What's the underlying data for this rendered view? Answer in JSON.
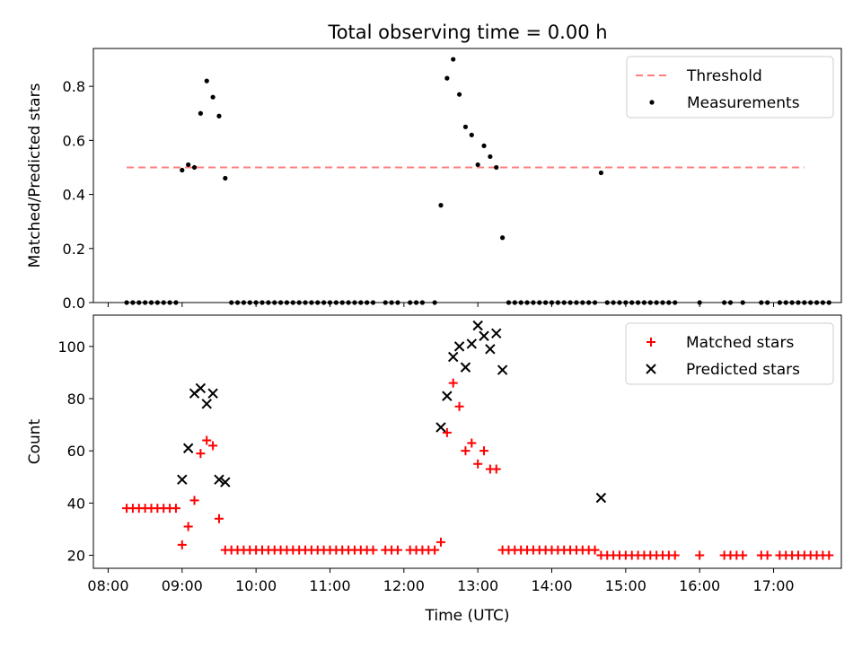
{
  "title": "Total observing time = 0.00 h",
  "colors": {
    "threshold": "#ff7f7f",
    "measurement": "#000000",
    "matched": "#ff0000",
    "predicted": "#000000"
  },
  "chart_data": [
    {
      "type": "scatter",
      "panel": "top",
      "ylabel": "Matched/Predicted stars",
      "xlim": [
        "07:48",
        "17:55"
      ],
      "ylim": [
        0,
        0.94
      ],
      "yticks": [
        "0.0",
        "0.2",
        "0.4",
        "0.6",
        "0.8"
      ],
      "legend": {
        "placement": "top-right",
        "entries": [
          "Threshold",
          "Measurements"
        ]
      },
      "threshold": {
        "name": "Threshold",
        "value": 0.5,
        "x_range": [
          "08:15",
          "17:25"
        ],
        "style": "dashed"
      },
      "series": [
        {
          "name": "Measurements",
          "points": [
            [
              "08:15",
              0
            ],
            [
              "08:20",
              0
            ],
            [
              "08:25",
              0
            ],
            [
              "08:30",
              0
            ],
            [
              "08:35",
              0
            ],
            [
              "08:40",
              0
            ],
            [
              "08:45",
              0
            ],
            [
              "08:50",
              0
            ],
            [
              "08:55",
              0
            ],
            [
              "09:00",
              0.49
            ],
            [
              "09:05",
              0.51
            ],
            [
              "09:10",
              0.5
            ],
            [
              "09:15",
              0.7
            ],
            [
              "09:20",
              0.82
            ],
            [
              "09:25",
              0.76
            ],
            [
              "09:30",
              0.69
            ],
            [
              "09:35",
              0.46
            ],
            [
              "09:40",
              0
            ],
            [
              "09:45",
              0
            ],
            [
              "09:50",
              0
            ],
            [
              "09:55",
              0
            ],
            [
              "10:00",
              0
            ],
            [
              "10:05",
              0
            ],
            [
              "10:10",
              0
            ],
            [
              "10:15",
              0
            ],
            [
              "10:20",
              0
            ],
            [
              "10:25",
              0
            ],
            [
              "10:30",
              0
            ],
            [
              "10:35",
              0
            ],
            [
              "10:40",
              0
            ],
            [
              "10:45",
              0
            ],
            [
              "10:50",
              0
            ],
            [
              "10:55",
              0
            ],
            [
              "11:00",
              0
            ],
            [
              "11:05",
              0
            ],
            [
              "11:10",
              0
            ],
            [
              "11:15",
              0
            ],
            [
              "11:20",
              0
            ],
            [
              "11:25",
              0
            ],
            [
              "11:30",
              0
            ],
            [
              "11:35",
              0
            ],
            [
              "11:45",
              0
            ],
            [
              "11:50",
              0
            ],
            [
              "11:55",
              0
            ],
            [
              "12:05",
              0
            ],
            [
              "12:10",
              0
            ],
            [
              "12:15",
              0
            ],
            [
              "12:25",
              0
            ],
            [
              "12:30",
              0.36
            ],
            [
              "12:35",
              0.83
            ],
            [
              "12:40",
              0.9
            ],
            [
              "12:45",
              0.77
            ],
            [
              "12:50",
              0.65
            ],
            [
              "12:55",
              0.62
            ],
            [
              "13:00",
              0.51
            ],
            [
              "13:05",
              0.58
            ],
            [
              "13:10",
              0.54
            ],
            [
              "13:15",
              0.5
            ],
            [
              "13:20",
              0.24
            ],
            [
              "13:25",
              0
            ],
            [
              "13:30",
              0
            ],
            [
              "13:35",
              0
            ],
            [
              "13:40",
              0
            ],
            [
              "13:45",
              0
            ],
            [
              "13:50",
              0
            ],
            [
              "13:55",
              0
            ],
            [
              "14:00",
              0
            ],
            [
              "14:05",
              0
            ],
            [
              "14:10",
              0
            ],
            [
              "14:15",
              0
            ],
            [
              "14:20",
              0
            ],
            [
              "14:25",
              0
            ],
            [
              "14:30",
              0
            ],
            [
              "14:35",
              0
            ],
            [
              "14:40",
              0.48
            ],
            [
              "14:45",
              0
            ],
            [
              "14:50",
              0
            ],
            [
              "14:55",
              0
            ],
            [
              "15:00",
              0
            ],
            [
              "15:05",
              0
            ],
            [
              "15:10",
              0
            ],
            [
              "15:15",
              0
            ],
            [
              "15:20",
              0
            ],
            [
              "15:25",
              0
            ],
            [
              "15:30",
              0
            ],
            [
              "15:35",
              0
            ],
            [
              "15:40",
              0
            ],
            [
              "16:00",
              0
            ],
            [
              "16:20",
              0
            ],
            [
              "16:25",
              0
            ],
            [
              "16:35",
              0
            ],
            [
              "16:50",
              0
            ],
            [
              "16:55",
              0
            ],
            [
              "17:05",
              0
            ],
            [
              "17:10",
              0
            ],
            [
              "17:15",
              0
            ],
            [
              "17:20",
              0
            ],
            [
              "17:25",
              0
            ],
            [
              "17:30",
              0
            ],
            [
              "17:35",
              0
            ],
            [
              "17:40",
              0
            ],
            [
              "17:45",
              0
            ]
          ]
        }
      ]
    },
    {
      "type": "scatter",
      "panel": "bottom",
      "xlabel": "Time (UTC)",
      "ylabel": "Count",
      "xlim": [
        "07:48",
        "17:55"
      ],
      "ylim": [
        15,
        112
      ],
      "xticks": [
        "08:00",
        "09:00",
        "10:00",
        "11:00",
        "12:00",
        "13:00",
        "14:00",
        "15:00",
        "16:00",
        "17:00"
      ],
      "yticks": [
        "20",
        "40",
        "60",
        "80",
        "100"
      ],
      "legend": {
        "placement": "top-right",
        "entries": [
          "Matched stars",
          "Predicted stars"
        ]
      },
      "series": [
        {
          "name": "Matched stars",
          "marker": "plus",
          "points": [
            [
              "08:15",
              38
            ],
            [
              "08:20",
              38
            ],
            [
              "08:25",
              38
            ],
            [
              "08:30",
              38
            ],
            [
              "08:35",
              38
            ],
            [
              "08:40",
              38
            ],
            [
              "08:45",
              38
            ],
            [
              "08:50",
              38
            ],
            [
              "08:55",
              38
            ],
            [
              "09:00",
              24
            ],
            [
              "09:05",
              31
            ],
            [
              "09:10",
              41
            ],
            [
              "09:15",
              59
            ],
            [
              "09:20",
              64
            ],
            [
              "09:25",
              62
            ],
            [
              "09:30",
              34
            ],
            [
              "09:35",
              22
            ],
            [
              "09:40",
              22
            ],
            [
              "09:45",
              22
            ],
            [
              "09:50",
              22
            ],
            [
              "09:55",
              22
            ],
            [
              "10:00",
              22
            ],
            [
              "10:05",
              22
            ],
            [
              "10:10",
              22
            ],
            [
              "10:15",
              22
            ],
            [
              "10:20",
              22
            ],
            [
              "10:25",
              22
            ],
            [
              "10:30",
              22
            ],
            [
              "10:35",
              22
            ],
            [
              "10:40",
              22
            ],
            [
              "10:45",
              22
            ],
            [
              "10:50",
              22
            ],
            [
              "10:55",
              22
            ],
            [
              "11:00",
              22
            ],
            [
              "11:05",
              22
            ],
            [
              "11:10",
              22
            ],
            [
              "11:15",
              22
            ],
            [
              "11:20",
              22
            ],
            [
              "11:25",
              22
            ],
            [
              "11:30",
              22
            ],
            [
              "11:35",
              22
            ],
            [
              "11:45",
              22
            ],
            [
              "11:50",
              22
            ],
            [
              "11:55",
              22
            ],
            [
              "12:05",
              22
            ],
            [
              "12:10",
              22
            ],
            [
              "12:15",
              22
            ],
            [
              "12:20",
              22
            ],
            [
              "12:25",
              22
            ],
            [
              "12:30",
              25
            ],
            [
              "12:35",
              67
            ],
            [
              "12:40",
              86
            ],
            [
              "12:45",
              77
            ],
            [
              "12:50",
              60
            ],
            [
              "12:55",
              63
            ],
            [
              "13:00",
              55
            ],
            [
              "13:05",
              60
            ],
            [
              "13:10",
              53
            ],
            [
              "13:15",
              53
            ],
            [
              "13:20",
              22
            ],
            [
              "13:25",
              22
            ],
            [
              "13:30",
              22
            ],
            [
              "13:35",
              22
            ],
            [
              "13:40",
              22
            ],
            [
              "13:45",
              22
            ],
            [
              "13:50",
              22
            ],
            [
              "13:55",
              22
            ],
            [
              "14:00",
              22
            ],
            [
              "14:05",
              22
            ],
            [
              "14:10",
              22
            ],
            [
              "14:15",
              22
            ],
            [
              "14:20",
              22
            ],
            [
              "14:25",
              22
            ],
            [
              "14:30",
              22
            ],
            [
              "14:35",
              22
            ],
            [
              "14:40",
              20
            ],
            [
              "14:45",
              20
            ],
            [
              "14:50",
              20
            ],
            [
              "14:55",
              20
            ],
            [
              "15:00",
              20
            ],
            [
              "15:05",
              20
            ],
            [
              "15:10",
              20
            ],
            [
              "15:15",
              20
            ],
            [
              "15:20",
              20
            ],
            [
              "15:25",
              20
            ],
            [
              "15:30",
              20
            ],
            [
              "15:35",
              20
            ],
            [
              "15:40",
              20
            ],
            [
              "16:00",
              20
            ],
            [
              "16:20",
              20
            ],
            [
              "16:25",
              20
            ],
            [
              "16:30",
              20
            ],
            [
              "16:35",
              20
            ],
            [
              "16:50",
              20
            ],
            [
              "16:55",
              20
            ],
            [
              "17:05",
              20
            ],
            [
              "17:10",
              20
            ],
            [
              "17:15",
              20
            ],
            [
              "17:20",
              20
            ],
            [
              "17:25",
              20
            ],
            [
              "17:30",
              20
            ],
            [
              "17:35",
              20
            ],
            [
              "17:40",
              20
            ],
            [
              "17:45",
              20
            ]
          ]
        },
        {
          "name": "Predicted stars",
          "marker": "x",
          "points": [
            [
              "09:00",
              49
            ],
            [
              "09:05",
              61
            ],
            [
              "09:10",
              82
            ],
            [
              "09:15",
              84
            ],
            [
              "09:20",
              78
            ],
            [
              "09:25",
              82
            ],
            [
              "09:30",
              49
            ],
            [
              "09:35",
              48
            ],
            [
              "12:30",
              69
            ],
            [
              "12:35",
              81
            ],
            [
              "12:40",
              96
            ],
            [
              "12:45",
              100
            ],
            [
              "12:50",
              92
            ],
            [
              "12:55",
              101
            ],
            [
              "13:00",
              108
            ],
            [
              "13:05",
              104
            ],
            [
              "13:10",
              99
            ],
            [
              "13:15",
              105
            ],
            [
              "13:20",
              91
            ],
            [
              "14:40",
              42
            ]
          ]
        }
      ]
    }
  ]
}
